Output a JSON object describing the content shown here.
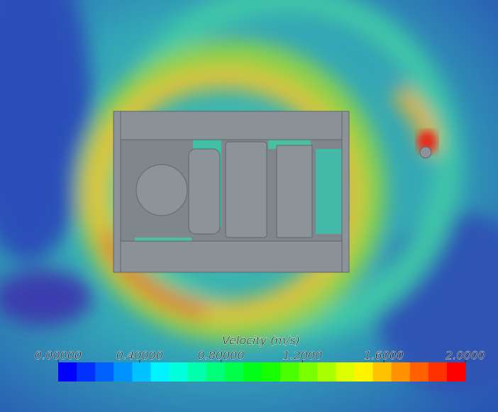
{
  "colorbar": {
    "title": "Velocity (m/s)",
    "range": [
      0,
      2
    ],
    "ticks": [
      {
        "value": 0,
        "label": "0.00000"
      },
      {
        "value": 0.4,
        "label": "0.40000"
      },
      {
        "value": 0.8,
        "label": "0.80000"
      },
      {
        "value": 1.2,
        "label": "1.2000"
      },
      {
        "value": 1.6,
        "label": "1.6000"
      },
      {
        "value": 2,
        "label": "2.0000"
      }
    ]
  }
}
